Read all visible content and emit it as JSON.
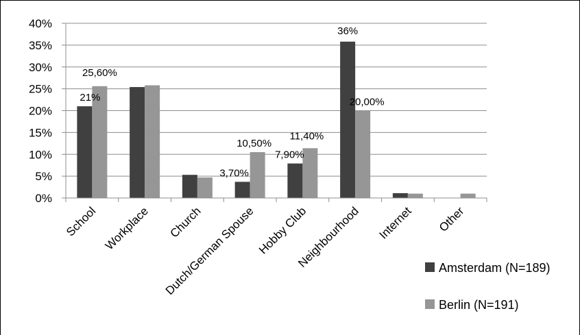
{
  "chart_data": {
    "type": "bar",
    "title": "",
    "xlabel": "",
    "ylabel": "",
    "categories": [
      "School",
      "Workplace",
      "Church",
      "Dutch/German Spouse",
      "Hobby Club",
      "Neighbourhood",
      "Internet",
      "Other"
    ],
    "series": [
      {
        "name": "Amsterdam (N=189)",
        "color": "#404040",
        "values": [
          21,
          25.4,
          5.3,
          3.7,
          7.9,
          35.8,
          1.1,
          0
        ],
        "data_labels": [
          "21%",
          "",
          "",
          "3,70%",
          "7,90%",
          "36%",
          "",
          ""
        ]
      },
      {
        "name": "Berlin (N=191)",
        "color": "#969696",
        "values": [
          25.6,
          25.8,
          4.7,
          10.5,
          11.4,
          20.0,
          1.0,
          1.0
        ],
        "data_labels": [
          "25,60%",
          "",
          "",
          "10,50%",
          "11,40%",
          "20,00%",
          "",
          ""
        ]
      }
    ],
    "ylim": [
      0,
      40
    ],
    "yticks": [
      0,
      5,
      10,
      15,
      20,
      25,
      30,
      35,
      40
    ],
    "ytick_labels": [
      "0%",
      "5%",
      "10%",
      "15%",
      "20%",
      "25%",
      "30%",
      "35%",
      "40%"
    ],
    "grid": true,
    "legend_position": "right"
  }
}
